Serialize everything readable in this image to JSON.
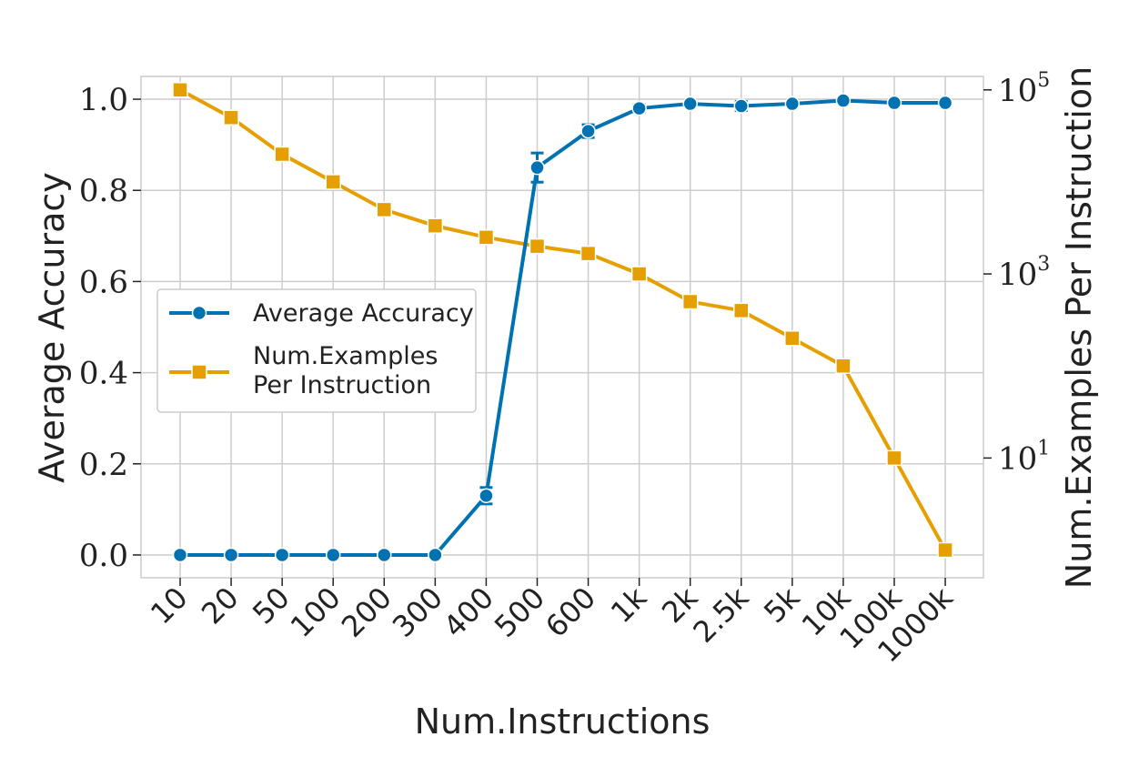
{
  "chart_data": {
    "type": "line",
    "title": "",
    "xlabel": "Num.Instructions",
    "ylabel_left": "Average Accuracy",
    "ylabel_right": "Num.Examples Per Instruction",
    "categories": [
      "10",
      "20",
      "50",
      "100",
      "200",
      "300",
      "400",
      "500",
      "600",
      "1k",
      "2k",
      "2.5k",
      "5k",
      "10k",
      "100k",
      "1000k"
    ],
    "y_left": {
      "lim": [
        -0.05,
        1.05
      ],
      "ticks": [
        0.0,
        0.2,
        0.4,
        0.6,
        0.8,
        1.0
      ],
      "tick_labels": [
        "0.0",
        "0.2",
        "0.4",
        "0.6",
        "0.8",
        "1.0"
      ]
    },
    "y_right": {
      "scale": "log",
      "lim": [
        0.5,
        140000
      ],
      "ticks": [
        10,
        1000,
        100000
      ],
      "tick_base": "10",
      "tick_exponents": [
        "1",
        "3",
        "5"
      ]
    },
    "grid": true,
    "legend_position": "center-left",
    "series": [
      {
        "name": "Average Accuracy",
        "axis": "left",
        "marker": "circle",
        "color": "#0072b2",
        "values": [
          0.0,
          0.0,
          0.0,
          0.0,
          0.0,
          0.0,
          0.13,
          0.85,
          0.93,
          0.98,
          0.99,
          0.985,
          0.99,
          0.997,
          0.992,
          0.992
        ],
        "error": [
          0,
          0,
          0,
          0,
          0,
          0,
          0.018,
          0.032,
          0.014,
          0.008,
          0.005,
          0.01,
          0.006,
          0.004,
          0.004,
          0.004
        ]
      },
      {
        "name": "Num.Examples\nPer Instruction",
        "name_lines": [
          "Num.Examples",
          "Per Instruction"
        ],
        "axis": "right",
        "marker": "square",
        "color": "#e69f00",
        "values": [
          100000,
          50000,
          20000,
          10000,
          5000,
          3333,
          2500,
          2000,
          1667,
          1000,
          500,
          400,
          200,
          100,
          10,
          1
        ]
      }
    ]
  }
}
